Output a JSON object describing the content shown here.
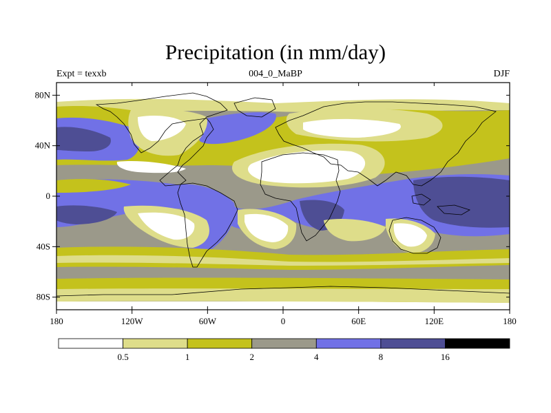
{
  "title": "Precipitation (in mm/day)",
  "subtitle_left": "Expt = texxb",
  "subtitle_center": "004_0_MaBP",
  "subtitle_right": "DJF",
  "map": {
    "lon_range": [
      -180,
      180
    ],
    "lat_range": [
      -90,
      90
    ],
    "lat_ticks": [
      {
        "value": 80,
        "label": "80N"
      },
      {
        "value": 40,
        "label": "40N"
      },
      {
        "value": 0,
        "label": "0"
      },
      {
        "value": -40,
        "label": "40S"
      },
      {
        "value": -80,
        "label": "80S"
      }
    ],
    "lon_ticks": [
      {
        "value": -180,
        "label": "180"
      },
      {
        "value": -120,
        "label": "120W"
      },
      {
        "value": -60,
        "label": "60W"
      },
      {
        "value": 0,
        "label": "0"
      },
      {
        "value": 60,
        "label": "60E"
      },
      {
        "value": 120,
        "label": "120E"
      },
      {
        "value": 180,
        "label": "180"
      }
    ]
  },
  "colorbar": {
    "colors": [
      "#ffffff",
      "#dedd8a",
      "#c4c21c",
      "#9b998a",
      "#7171e6",
      "#4e4e94",
      "#000000"
    ],
    "labels": [
      "0.5",
      "1",
      "2",
      "4",
      "8",
      "16"
    ]
  }
}
